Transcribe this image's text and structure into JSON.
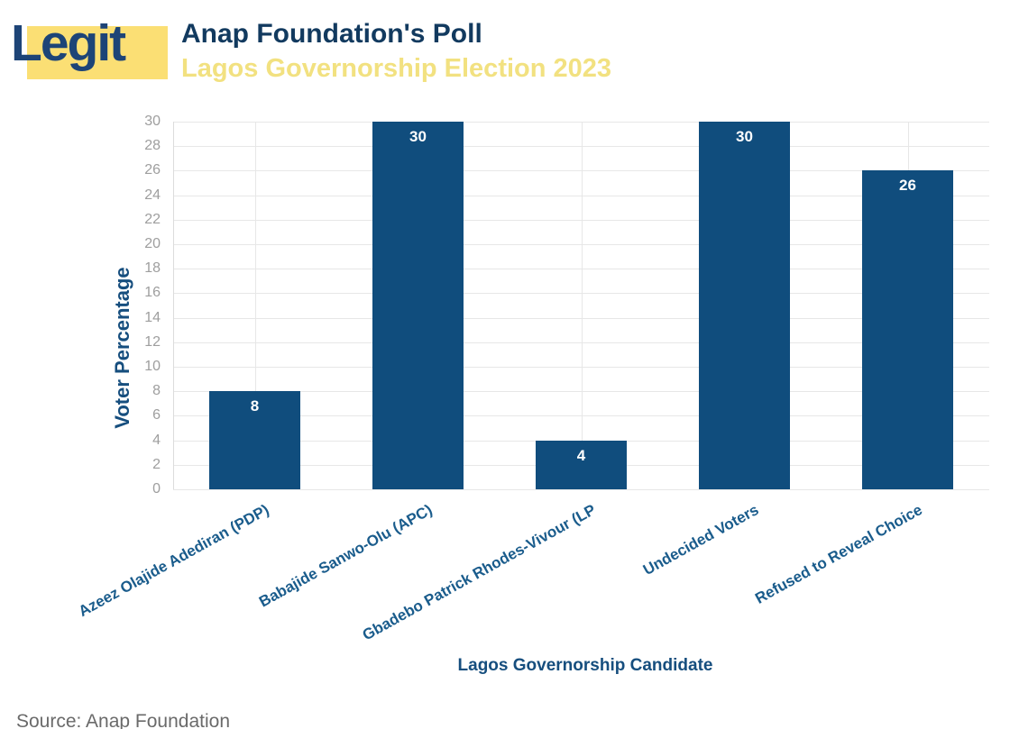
{
  "header": {
    "logo_text": "Legit",
    "title": "Anap Foundation's Poll",
    "subtitle": "Lagos Governorship Election 2023"
  },
  "chart_data": {
    "type": "bar",
    "title": "Anap Foundation's Poll",
    "subtitle": "Lagos Governorship Election 2023",
    "categories": [
      "Azeez Olajide Adediran (PDP)",
      "Babajide Sanwo-Olu (APC)",
      "Gbadebo Patrick Rhodes-Vivour (LP",
      "Undecided Voters",
      "Refused to Reveal Choice"
    ],
    "values": [
      8,
      30,
      4,
      30,
      26
    ],
    "bar_value_labels": [
      "8",
      "30",
      "4",
      "30",
      "26"
    ],
    "xlabel": "Lagos Governorship Candidate",
    "ylabel": "Voter Percentage",
    "ylim": [
      0,
      30
    ],
    "ytick_step": 2,
    "grid": true,
    "legend": false,
    "bar_color": "#104D7D",
    "bar_value_label_color": "#FFFFFF"
  },
  "footer": {
    "source_text": "Source: Anap Foundation"
  },
  "colors": {
    "background": "#FFFFFF",
    "brand_navy": "#1D4477",
    "brand_yellow": "#FBDF74",
    "title_navy": "#123A5F",
    "subtitle_yellow": "#F2E180",
    "axis_label_blue": "#1A5C8C",
    "axis_title_blue": "#164E7E",
    "tick_gray": "#9E9E9E",
    "gridline": "#E7E7E7",
    "source_gray": "#6A6A6A"
  }
}
